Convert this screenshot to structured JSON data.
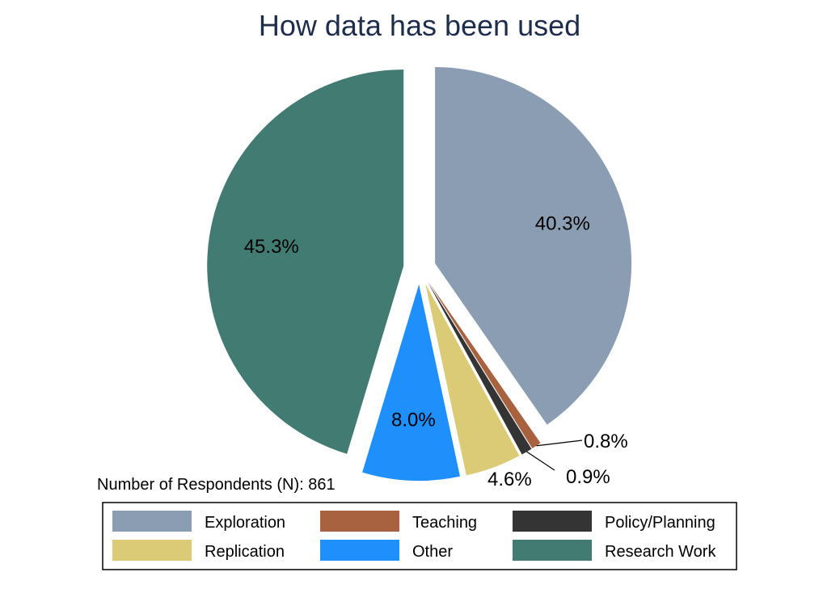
{
  "chart_data": {
    "type": "pie",
    "title": "How data has been used",
    "note": "Number of Respondents (N): 861",
    "start_angle_deg": 90,
    "direction": "clockwise",
    "exploded": true,
    "legend_position": "bottom",
    "slices": [
      {
        "label": "Exploration",
        "value": 40.3,
        "value_label": "40.3%",
        "color": "#8a9db3"
      },
      {
        "label": "Teaching",
        "value": 0.8,
        "value_label": "0.8%",
        "color": "#a8623f"
      },
      {
        "label": "Policy/Planning",
        "value": 0.9,
        "value_label": "0.9%",
        "color": "#343434"
      },
      {
        "label": "Replication",
        "value": 4.6,
        "value_label": "4.6%",
        "color": "#dccb76"
      },
      {
        "label": "Other",
        "value": 8.0,
        "value_label": "8.0%",
        "color": "#1e8ffb"
      },
      {
        "label": "Research Work",
        "value": 45.3,
        "value_label": "45.3%",
        "color": "#427b72"
      }
    ]
  }
}
